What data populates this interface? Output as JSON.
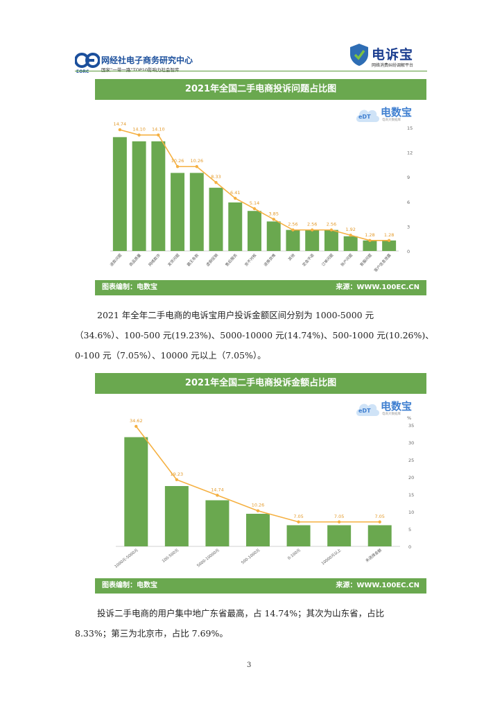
{
  "header": {
    "org_name": "网经社电子商务研究中心",
    "org_tagline": "国家“一带一路”TOP10影响力社会智库",
    "org_abbr": "EORC",
    "brand_name": "电诉宝",
    "brand_tagline": "网络消费纠纷调解平台"
  },
  "watermark": {
    "name": "电数宝",
    "sub": "电商大数据库",
    "badge": "eDT"
  },
  "chart1": {
    "title": "2021年全国二手电商投诉问题占比图",
    "footer_left": "图表编制：电数宝",
    "footer_right": "来源：WWW.100EC.CN"
  },
  "chart2": {
    "title": "2021年全国二手电商投诉金额占比图",
    "footer_left": "图表编制：电数宝",
    "footer_right": "来源：WWW.100EC.CN"
  },
  "chart_data": [
    {
      "type": "bar",
      "title": "2021年全国二手电商投诉问题占比图",
      "categories": [
        "退款问题",
        "商品质量",
        "网络欺诈",
        "发货问题",
        "霸王条款",
        "虚假促销",
        "售后服务",
        "货不对板",
        "退换货难",
        "其他",
        "定金不退",
        "订单问题",
        "账户问题",
        "客服问题",
        "客户信息泄露"
      ],
      "categories_display": [
        "退款问题",
        "商品质量",
        "网络欺诈",
        "发货问题",
        "霸王条款",
        "虚假促销",
        "售后服务",
        "货不对板",
        "退换货难",
        "其他",
        "定金不退",
        "订单问题",
        "账户问题",
        "客服问题",
        "客户信息泄露"
      ],
      "series": [
        {
          "values": [
            13.84,
            13.33,
            13.33,
            9.49,
            9.49,
            7.69,
            5.9,
            4.87,
            3.59,
            2.56,
            2.56,
            2.56,
            1.79,
            1.28,
            1.28
          ]
        },
        {
          "values": [
            14.74,
            14.1,
            14.1,
            10.26,
            10.26,
            8.33,
            6.41,
            5.14,
            3.85,
            2.56,
            2.56,
            2.56,
            1.92,
            1.28,
            1.28
          ]
        }
      ],
      "data_labels": [
        "14.74",
        "14.10",
        "14.10",
        "10.26",
        "10.26",
        "8.33",
        "6.41",
        "5.14",
        "3.85",
        "2.56",
        "2.56",
        "2.56",
        "1.92",
        "1.28",
        "1.28"
      ],
      "ylim": [
        0,
        15
      ],
      "yticks": [
        "0",
        "3",
        "6",
        "9",
        "12",
        "15"
      ],
      "colors": {
        "bar": "#6aa84f",
        "line": "#f5b041"
      }
    },
    {
      "type": "bar",
      "title": "2021年全国二手电商投诉金额占比图",
      "categories": [
        "1000元-5000元",
        "100-500元",
        "5000-10000元",
        "500-1000元",
        "0-100元",
        "10000元以上",
        "未选择金额"
      ],
      "series": [
        {
          "values": [
            31.5,
            17.4,
            13.3,
            9.4,
            6.1,
            6.1,
            6.1
          ]
        },
        {
          "values": [
            34.62,
            19.23,
            14.74,
            10.26,
            7.05,
            7.05,
            7.05
          ]
        }
      ],
      "data_labels": [
        "34.62",
        "19.23",
        "14.74",
        "10.26",
        "7.05",
        "7.05",
        "7.05"
      ],
      "ylim": [
        0,
        35
      ],
      "yticks": [
        "0",
        "5",
        "10",
        "15",
        "20",
        "25",
        "30",
        "35"
      ],
      "y_unit": "%",
      "colors": {
        "bar": "#6aa84f",
        "line": "#f5b041"
      }
    }
  ],
  "text": {
    "para1_lines": [
      "2021 年全年二手电商的电诉宝用户投诉金额区间分别为 1000-5000 元",
      "（34.6%）、100-500 元(19.23%)、5000-10000 元(14.74%)、500-1000 元(10.26%)、",
      "0-100 元（7.05%）、10000 元以上（7.05%）。"
    ],
    "para2_lines": [
      "投诉二手电商的用户集中地广东省最高，占 14.74%；其次为山东省，占比",
      "8.33%；第三为北京市，占比 7.69%。"
    ],
    "page_number": "3"
  }
}
